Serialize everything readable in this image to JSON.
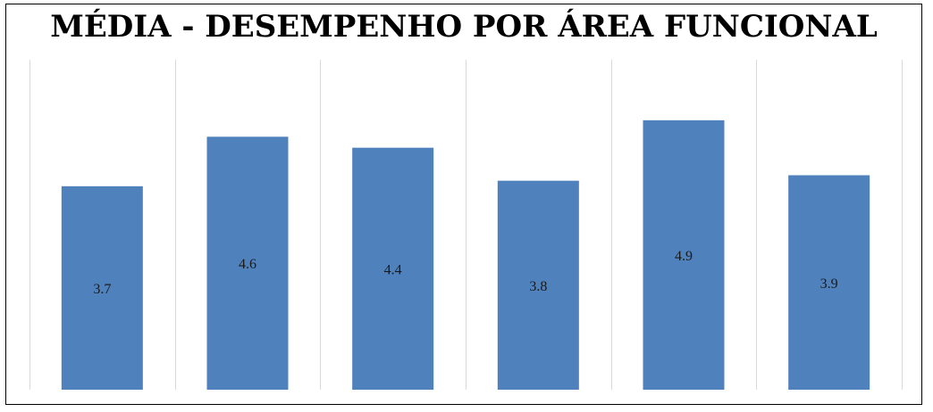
{
  "chart_data": {
    "type": "bar",
    "title": "MÉDIA - DESEMPENHO POR ÁREA FUNCIONAL",
    "categories": [
      "",
      "",
      "",
      "",
      "",
      ""
    ],
    "values": [
      3.7,
      4.6,
      4.4,
      3.8,
      4.9,
      3.9
    ],
    "data_labels": [
      "3.7",
      "4.6",
      "4.4",
      "3.8",
      "4.9",
      "3.9"
    ],
    "data_label_position": "center",
    "ylim": [
      0,
      6
    ],
    "xlabel": "",
    "ylabel": "",
    "grid": "vertical",
    "legend": "none",
    "bar_color": "#4F81BD",
    "grid_color": "#D9D9D9"
  }
}
